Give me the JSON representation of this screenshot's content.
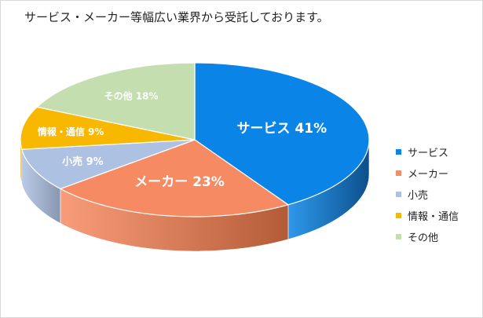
{
  "chart_data": {
    "type": "pie",
    "title": "サービス・メーカー等幅広い業界から受託しております。",
    "slices": [
      {
        "label": "サービス",
        "value": 41,
        "display": "サービス 41%",
        "color": "#0a84e6",
        "side_color": "#0c4f8a"
      },
      {
        "label": "メーカー",
        "value": 23,
        "display": "メーカー 23%",
        "color": "#f68a62",
        "side_color": "#b35a36"
      },
      {
        "label": "小売",
        "value": 9,
        "display": "小売 9%",
        "color": "#adc1e2",
        "side_color": "#8896ae"
      },
      {
        "label": "情報・通信",
        "value": 9,
        "display": "情報・通信 9%",
        "color": "#f8b800",
        "side_color": "#b98a00"
      },
      {
        "label": "その他",
        "value": 18,
        "display": "その他 18%",
        "color": "#c4deaf",
        "side_color": "#97ad86"
      }
    ],
    "legend": {
      "position": "right"
    }
  }
}
